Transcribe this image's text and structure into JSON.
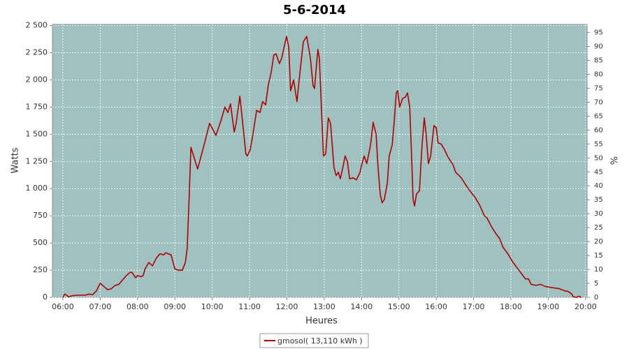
{
  "chart_data": {
    "type": "line",
    "title": "5-6-2014",
    "x_label": "Heures",
    "y_label": "Watts",
    "y2_label": "%",
    "xlim": [
      5.72,
      20.04
    ],
    "ylim": [
      0,
      2510
    ],
    "y2lim": [
      0,
      97.9
    ],
    "grid": true,
    "legend": "bottom",
    "xticks": [
      {
        "value": 6,
        "label": "06:00"
      },
      {
        "value": 7,
        "label": "07:00"
      },
      {
        "value": 8,
        "label": "08:00"
      },
      {
        "value": 9,
        "label": "09:00"
      },
      {
        "value": 10,
        "label": "10:00"
      },
      {
        "value": 11,
        "label": "11:00"
      },
      {
        "value": 12,
        "label": "12:00"
      },
      {
        "value": 13,
        "label": "13:00"
      },
      {
        "value": 14,
        "label": "14:00"
      },
      {
        "value": 15,
        "label": "15:00"
      },
      {
        "value": 16,
        "label": "16:00"
      },
      {
        "value": 17,
        "label": "17:00"
      },
      {
        "value": 18,
        "label": "18:00"
      },
      {
        "value": 19,
        "label": "19:00"
      },
      {
        "value": 20,
        "label": "20:00"
      }
    ],
    "yticks": [
      0,
      250,
      500,
      750,
      {
        "value": 1000,
        "label": "1 000"
      },
      {
        "value": 1250,
        "label": "1 250"
      },
      {
        "value": 1500,
        "label": "1 500"
      },
      {
        "value": 1750,
        "label": "1 750"
      },
      {
        "value": 2000,
        "label": "2 000"
      },
      {
        "value": 2250,
        "label": "2 250"
      },
      {
        "value": 2500,
        "label": "2 500"
      }
    ],
    "y2ticks": [
      0,
      5,
      10,
      15,
      20,
      25,
      30,
      35,
      40,
      45,
      50,
      55,
      60,
      65,
      70,
      75,
      80,
      85,
      90,
      95
    ],
    "x": [
      6.0,
      6.05,
      6.1,
      6.15,
      6.25,
      6.4,
      6.6,
      6.7,
      6.8,
      6.9,
      7.0,
      7.1,
      7.2,
      7.3,
      7.4,
      7.5,
      7.6,
      7.7,
      7.8,
      7.85,
      7.95,
      8.0,
      8.1,
      8.15,
      8.2,
      8.3,
      8.4,
      8.5,
      8.6,
      8.7,
      8.75,
      8.9,
      9.0,
      9.1,
      9.2,
      9.28,
      9.33,
      9.38,
      9.43,
      9.61,
      9.78,
      9.93,
      10.1,
      10.23,
      10.34,
      10.42,
      10.49,
      10.59,
      10.64,
      10.74,
      10.83,
      10.9,
      10.94,
      11.02,
      11.09,
      11.19,
      11.28,
      11.35,
      11.43,
      11.5,
      11.58,
      11.65,
      11.71,
      11.8,
      11.86,
      11.99,
      12.05,
      12.1,
      12.18,
      12.27,
      12.36,
      12.44,
      12.53,
      12.63,
      12.7,
      12.74,
      12.83,
      12.87,
      12.93,
      12.98,
      13.04,
      13.11,
      13.17,
      13.26,
      13.32,
      13.38,
      13.43,
      13.49,
      13.56,
      13.62,
      13.68,
      13.77,
      13.86,
      13.96,
      13.99,
      14.07,
      14.14,
      14.24,
      14.31,
      14.39,
      14.44,
      14.5,
      14.55,
      14.61,
      14.69,
      14.74,
      14.82,
      14.87,
      14.93,
      14.97,
      15.02,
      15.1,
      15.17,
      15.23,
      15.29,
      15.34,
      15.38,
      15.42,
      15.47,
      15.55,
      15.62,
      15.68,
      15.73,
      15.79,
      15.85,
      15.94,
      16.0,
      16.05,
      16.13,
      16.22,
      16.3,
      16.39,
      16.45,
      16.52,
      16.67,
      16.78,
      16.9,
      17.04,
      17.16,
      17.29,
      17.36,
      17.48,
      17.61,
      17.7,
      17.79,
      17.92,
      18.04,
      18.17,
      18.28,
      18.39,
      18.47,
      18.54,
      18.67,
      18.79,
      18.92,
      19.1,
      19.29,
      19.44,
      19.53,
      19.63,
      19.67,
      19.76,
      19.82,
      19.89
    ],
    "series": [
      {
        "name": "gmosol( 13,110 kWh )",
        "color": "#b00000",
        "values": [
          0,
          30,
          20,
          5,
          15,
          20,
          20,
          30,
          25,
          60,
          130,
          100,
          70,
          80,
          110,
          120,
          160,
          200,
          230,
          230,
          180,
          200,
          190,
          200,
          260,
          320,
          290,
          360,
          400,
          390,
          410,
          390,
          260,
          250,
          250,
          320,
          450,
          900,
          1380,
          1180,
          1400,
          1600,
          1490,
          1620,
          1750,
          1700,
          1780,
          1520,
          1600,
          1850,
          1560,
          1320,
          1300,
          1360,
          1500,
          1720,
          1700,
          1800,
          1770,
          1950,
          2070,
          2230,
          2240,
          2150,
          2200,
          2400,
          2300,
          1900,
          2000,
          1800,
          2100,
          2350,
          2400,
          2200,
          1950,
          1920,
          2280,
          2200,
          1700,
          1300,
          1320,
          1650,
          1600,
          1200,
          1120,
          1150,
          1090,
          1180,
          1300,
          1250,
          1090,
          1100,
          1080,
          1150,
          1200,
          1300,
          1230,
          1400,
          1610,
          1500,
          1200,
          950,
          870,
          900,
          1050,
          1300,
          1400,
          1600,
          1880,
          1900,
          1750,
          1830,
          1840,
          1880,
          1750,
          1300,
          900,
          840,
          950,
          980,
          1400,
          1650,
          1500,
          1230,
          1300,
          1580,
          1560,
          1420,
          1410,
          1360,
          1300,
          1250,
          1220,
          1150,
          1100,
          1040,
          980,
          920,
          850,
          750,
          730,
          650,
          580,
          540,
          460,
          400,
          330,
          270,
          220,
          170,
          170,
          120,
          110,
          120,
          100,
          90,
          80,
          60,
          55,
          30,
          5,
          0,
          10,
          0
        ]
      }
    ]
  }
}
